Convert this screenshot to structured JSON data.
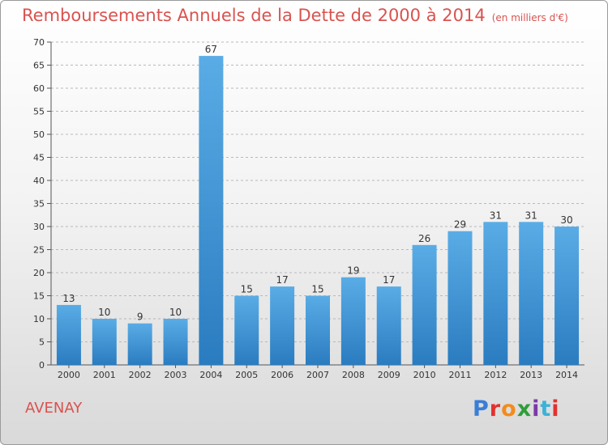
{
  "page": {
    "title": "Remboursements Annuels de la Dette de 2000 à 2014",
    "unit": "(en milliers d'€)",
    "town": "AVENAY",
    "brand": "Proxiti"
  },
  "colors": {
    "title": "#d9534f",
    "bar_top": "#5aace6",
    "bar_bottom": "#2a7cc0",
    "brand_letters": [
      "#3b7dd8",
      "#e2312f",
      "#f28c1b",
      "#2f9e3a",
      "#7a3aa8",
      "#3bb2d8",
      "#e2312f"
    ]
  },
  "chart_data": {
    "type": "bar",
    "categories": [
      "2000",
      "2001",
      "2002",
      "2003",
      "2004",
      "2005",
      "2006",
      "2007",
      "2008",
      "2009",
      "2010",
      "2011",
      "2012",
      "2013",
      "2014"
    ],
    "values": [
      13,
      10,
      9,
      10,
      67,
      15,
      17,
      15,
      19,
      17,
      26,
      29,
      31,
      31,
      30
    ],
    "ylim": [
      0,
      70
    ],
    "yticks": [
      0,
      5,
      10,
      15,
      20,
      25,
      30,
      35,
      40,
      45,
      50,
      55,
      60,
      65,
      70
    ],
    "grid": "dashed horizontal"
  }
}
